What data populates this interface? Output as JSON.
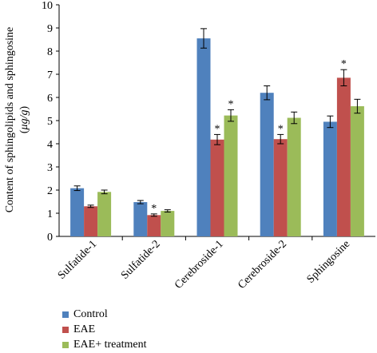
{
  "chart_data": {
    "type": "bar",
    "ylabel_line1": "Content of sphingolipids and sphingosine",
    "ylabel_line2_pre": "(",
    "ylabel_line2_unit": "μg/g",
    "ylabel_line2_post": ")",
    "ylim": [
      0,
      10
    ],
    "yticks": [
      "0",
      "1",
      "2",
      "3",
      "4",
      "5",
      "6",
      "7",
      "8",
      "9",
      "10"
    ],
    "categories": [
      "Sulfatide-1",
      "Sulfatide-2",
      "Cerebroside-1",
      "Cerebroside-2",
      "Sphingosine"
    ],
    "series": [
      {
        "name": "Control",
        "color": "#4f81bd",
        "values": [
          2.08,
          1.48,
          8.55,
          6.2,
          4.95
        ],
        "errors": [
          0.1,
          0.07,
          0.42,
          0.3,
          0.25
        ],
        "marks": [
          "",
          "",
          "",
          "",
          ""
        ]
      },
      {
        "name": "EAE",
        "color": "#c0504d",
        "values": [
          1.3,
          0.92,
          4.18,
          4.2,
          6.85
        ],
        "errors": [
          0.05,
          0.05,
          0.22,
          0.2,
          0.35
        ],
        "marks": [
          "",
          "*",
          "*",
          "*",
          "*"
        ]
      },
      {
        "name": "EAE+ treatment",
        "color": "#9bbb59",
        "values": [
          1.92,
          1.1,
          5.22,
          5.12,
          5.62
        ],
        "errors": [
          0.08,
          0.05,
          0.25,
          0.25,
          0.3
        ],
        "marks": [
          "",
          "",
          "*",
          "",
          ""
        ]
      }
    ],
    "legend_position": "bottom-left"
  }
}
